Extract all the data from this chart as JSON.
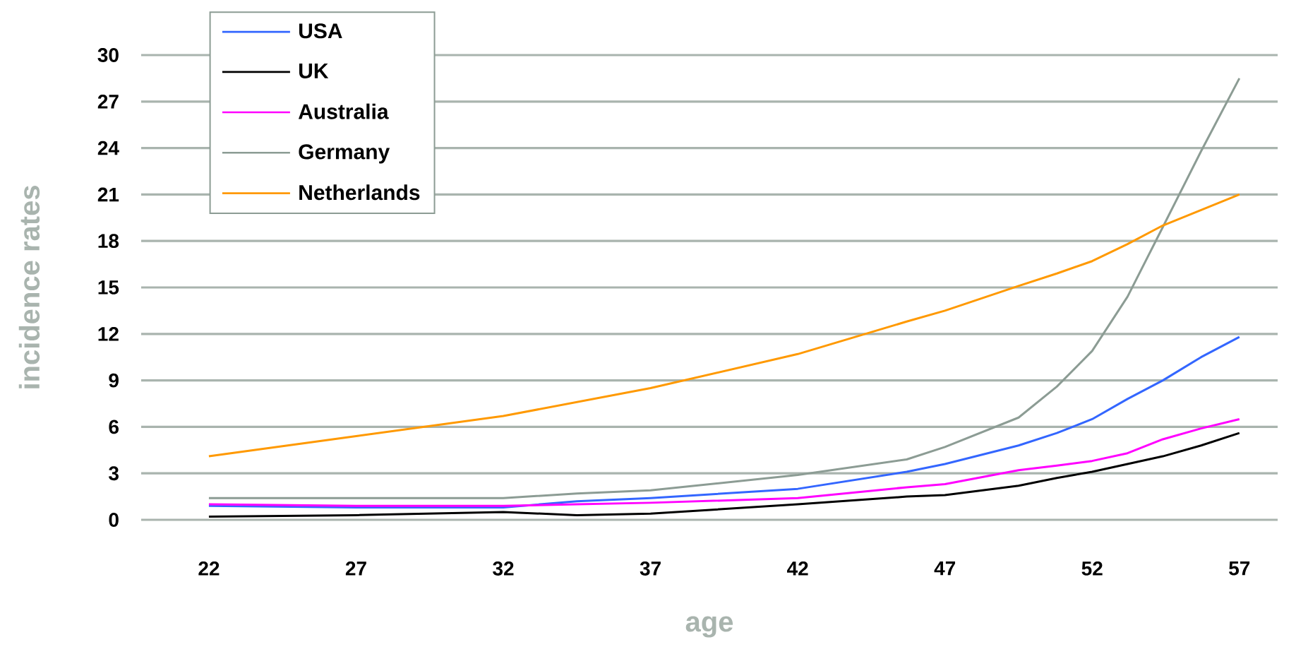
{
  "chart_data": {
    "type": "line",
    "xlabel": "age",
    "ylabel": "incidence rates",
    "x": [
      22,
      27,
      32,
      34.5,
      37,
      42,
      45.7,
      47,
      49.5,
      50.8,
      52,
      53.2,
      54.4,
      55.7,
      57
    ],
    "series": [
      {
        "name": "USA",
        "color": "#3366ff",
        "values": [
          0.9,
          0.8,
          0.8,
          1.2,
          1.4,
          2.0,
          3.1,
          3.6,
          4.8,
          5.6,
          6.5,
          7.8,
          9.0,
          10.5,
          11.8
        ]
      },
      {
        "name": "UK",
        "color": "#000000",
        "values": [
          0.2,
          0.3,
          0.5,
          0.3,
          0.4,
          1.0,
          1.5,
          1.6,
          2.2,
          2.7,
          3.1,
          3.6,
          4.1,
          4.8,
          5.6
        ]
      },
      {
        "name": "Australia",
        "color": "#ff00ff",
        "values": [
          1.0,
          0.9,
          0.9,
          1.0,
          1.1,
          1.4,
          2.1,
          2.3,
          3.2,
          3.5,
          3.8,
          4.3,
          5.2,
          5.9,
          6.5
        ]
      },
      {
        "name": "Germany",
        "color": "#8c9c94",
        "values": [
          1.4,
          1.4,
          1.4,
          1.7,
          1.9,
          2.9,
          3.9,
          4.7,
          6.6,
          8.6,
          10.9,
          14.4,
          18.9,
          23.8,
          28.5
        ]
      },
      {
        "name": "Netherlands",
        "color": "#ff9900",
        "values": [
          4.1,
          5.4,
          6.7,
          7.6,
          8.5,
          10.7,
          12.8,
          13.5,
          15.1,
          15.9,
          16.7,
          17.8,
          19.0,
          20.0,
          21.0
        ]
      }
    ],
    "xlim": [
      19.7,
      58.3
    ],
    "ylim": [
      0,
      30
    ],
    "xticks": [
      22,
      27,
      32,
      37,
      42,
      47,
      52,
      57
    ],
    "yticks": [
      0,
      3,
      6,
      9,
      12,
      15,
      18,
      21,
      24,
      27,
      30
    ],
    "grid": "y",
    "legend": "top left"
  }
}
